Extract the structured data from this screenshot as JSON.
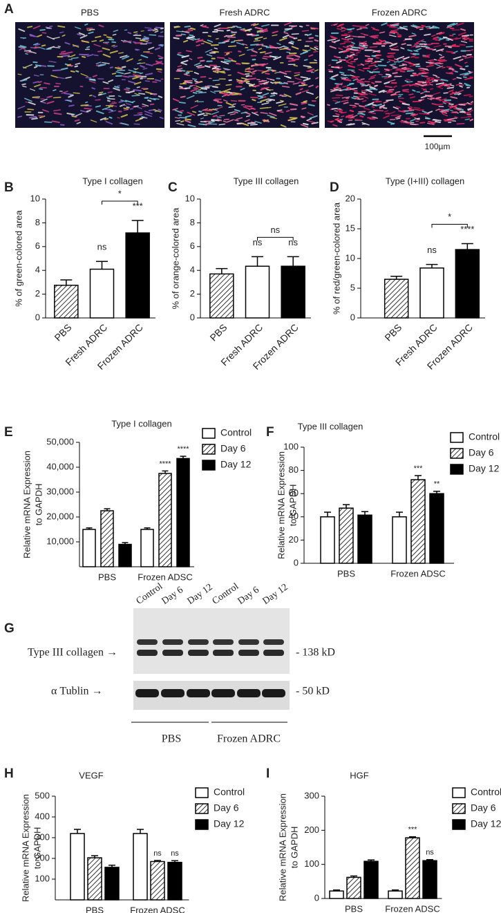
{
  "figure_a": {
    "panel": "A",
    "titles": [
      "PBS",
      "Fresh ADRC",
      "Frozen ADRC"
    ],
    "scale_bar": "100µm"
  },
  "chart_data": [
    {
      "type": "bar",
      "panel": "B",
      "title": "Type I collagen",
      "y_label": "% of green-colored area",
      "categories": [
        "PBS",
        "Fresh ADRC",
        "Frozen ADRC"
      ],
      "values": [
        2.75,
        4.1,
        7.15
      ],
      "errors": [
        0.45,
        0.65,
        1.05
      ],
      "colors": [
        "#ffffff",
        "#ffffff",
        "#000000"
      ],
      "patterns": [
        "hatch",
        "none",
        "none"
      ],
      "sig_labels": [
        null,
        "ns",
        "***"
      ],
      "comparison": "*",
      "ylim": [
        0,
        10
      ],
      "yticks": [
        0,
        2,
        4,
        6,
        8,
        10
      ]
    },
    {
      "type": "bar",
      "panel": "C",
      "title": "Type III collagen",
      "y_label": "% of orange-colored area",
      "categories": [
        "PBS",
        "Fresh ADRC",
        "Frozen ADRC"
      ],
      "values": [
        3.7,
        4.35,
        4.35
      ],
      "errors": [
        0.45,
        0.8,
        0.8
      ],
      "colors": [
        "#ffffff",
        "#ffffff",
        "#000000"
      ],
      "patterns": [
        "hatch",
        "none",
        "none"
      ],
      "sig_labels": [
        null,
        "ns",
        "ns"
      ],
      "comparison": "ns",
      "ylim": [
        0,
        10
      ],
      "yticks": [
        0,
        2,
        4,
        6,
        8,
        10
      ]
    },
    {
      "type": "bar",
      "panel": "D",
      "title": "Type (I+III) collagen",
      "y_label": "% of red/green-colored area",
      "categories": [
        "PBS",
        "Fresh ADRC",
        "Frozen ADRC"
      ],
      "values": [
        6.5,
        8.4,
        11.5
      ],
      "errors": [
        0.5,
        0.6,
        1.0
      ],
      "colors": [
        "#ffffff",
        "#ffffff",
        "#000000"
      ],
      "patterns": [
        "hatch",
        "none",
        "none"
      ],
      "sig_labels": [
        null,
        "ns",
        "****"
      ],
      "comparison": "*",
      "ylim": [
        0,
        20
      ],
      "yticks": [
        0,
        5,
        10,
        15,
        20
      ]
    },
    {
      "type": "grouped_bar",
      "panel": "E",
      "title": "Type I collagen",
      "y_label": [
        "Relative mRNA Expression",
        "to GAPDH"
      ],
      "categories": [
        "PBS",
        "Frozen ADSC"
      ],
      "series": [
        {
          "name": "Control",
          "color": "#ffffff",
          "pattern": "none",
          "values": [
            15000,
            15000
          ],
          "errors": [
            600,
            600
          ],
          "sig_labels": [
            null,
            null
          ]
        },
        {
          "name": "Day 6",
          "color": "#ffffff",
          "pattern": "hatch",
          "values": [
            22500,
            37500
          ],
          "errors": [
            800,
            1000
          ],
          "sig_labels": [
            null,
            "****"
          ]
        },
        {
          "name": "Day 12",
          "color": "#000000",
          "pattern": "none",
          "values": [
            9000,
            43500
          ],
          "errors": [
            700,
            900
          ],
          "sig_labels": [
            null,
            "****"
          ]
        }
      ],
      "ylim": [
        0,
        50000
      ],
      "yticks": [
        {
          "value": 10000,
          "label": "10,000"
        },
        {
          "value": 20000,
          "label": "20,000"
        },
        {
          "value": 30000,
          "label": "30,000"
        },
        {
          "value": 40000,
          "label": "40,000"
        },
        {
          "value": 50000,
          "label": "50,000"
        }
      ]
    },
    {
      "type": "grouped_bar",
      "panel": "F",
      "title": "Type III collagen",
      "y_label": [
        "Relative mRNA Expression",
        "to GAPDH"
      ],
      "categories": [
        "PBS",
        "Frozen ADSC"
      ],
      "series": [
        {
          "name": "Control",
          "color": "#ffffff",
          "pattern": "none",
          "values": [
            40,
            40
          ],
          "errors": [
            4,
            4
          ],
          "sig_labels": [
            null,
            null
          ]
        },
        {
          "name": "Day 6",
          "color": "#ffffff",
          "pattern": "hatch",
          "values": [
            47.5,
            72
          ],
          "errors": [
            3,
            3.5
          ],
          "sig_labels": [
            null,
            "***"
          ]
        },
        {
          "name": "Day 12",
          "color": "#000000",
          "pattern": "none",
          "values": [
            41.5,
            60
          ],
          "errors": [
            3,
            2
          ],
          "sig_labels": [
            null,
            "**"
          ]
        }
      ],
      "ylim": [
        0,
        100
      ],
      "yticks": [
        0,
        20,
        40,
        60,
        80,
        100
      ]
    },
    {
      "type": "grouped_bar",
      "panel": "H",
      "title": "VEGF",
      "y_label": [
        "Relative mRNA Expression",
        "to GAPDH"
      ],
      "categories": [
        "PBS",
        "Frozen ADSC"
      ],
      "series": [
        {
          "name": "Control",
          "color": "#ffffff",
          "pattern": "none",
          "values": [
            320,
            320
          ],
          "errors": [
            20,
            20
          ],
          "sig_labels": [
            null,
            null
          ]
        },
        {
          "name": "Day 6",
          "color": "#ffffff",
          "pattern": "hatch",
          "values": [
            203,
            185
          ],
          "errors": [
            10,
            5
          ],
          "sig_labels": [
            null,
            "ns"
          ]
        },
        {
          "name": "Day 12",
          "color": "#000000",
          "pattern": "none",
          "values": [
            157,
            181
          ],
          "errors": [
            10,
            8
          ],
          "sig_labels": [
            null,
            "ns"
          ]
        }
      ],
      "ylim": [
        0,
        500
      ],
      "yticks": [
        100,
        200,
        300,
        400,
        500
      ]
    },
    {
      "type": "grouped_bar",
      "panel": "I",
      "title": "HGF",
      "y_label": [
        "Relative mRNA Expression",
        "to GAPDH"
      ],
      "categories": [
        "PBS",
        "Frozen ADSC"
      ],
      "series": [
        {
          "name": "Control",
          "color": "#ffffff",
          "pattern": "none",
          "values": [
            22,
            22
          ],
          "errors": [
            3,
            3
          ],
          "sig_labels": [
            null,
            null
          ]
        },
        {
          "name": "Day 6",
          "color": "#ffffff",
          "pattern": "hatch",
          "values": [
            62,
            178
          ],
          "errors": [
            4,
            3
          ],
          "sig_labels": [
            null,
            "***"
          ]
        },
        {
          "name": "Day 12",
          "color": "#000000",
          "pattern": "none",
          "values": [
            109,
            111
          ],
          "errors": [
            4,
            3
          ],
          "sig_labels": [
            null,
            "ns"
          ]
        }
      ],
      "ylim": [
        0,
        300
      ],
      "yticks": [
        0,
        100,
        200,
        300
      ]
    }
  ],
  "figure_g": {
    "panel": "G",
    "lanes": [
      "Control",
      "Day 6",
      "Day 12",
      "Control",
      "Day 6",
      "Day 12"
    ],
    "rows": [
      {
        "label": "Type III collagen →",
        "size": "- 138 kD"
      },
      {
        "label": "α Tublin →",
        "size": "- 50 kD"
      }
    ],
    "groups": [
      "PBS",
      "Frozen ADRC"
    ]
  }
}
